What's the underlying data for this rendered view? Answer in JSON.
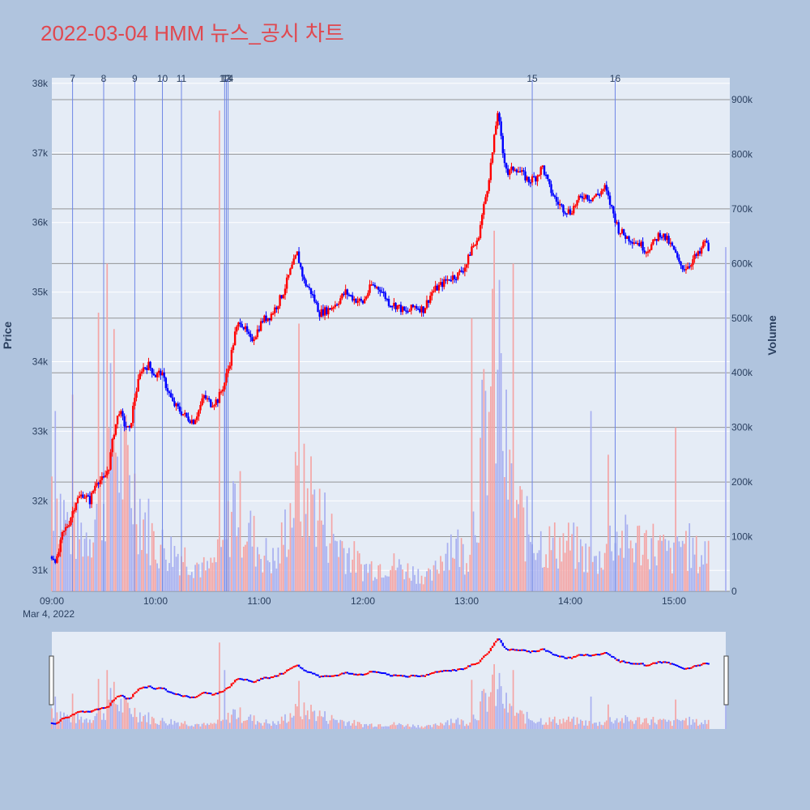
{
  "title": "2022-03-04 HMM 뉴스_공시 차트",
  "colors": {
    "title": "#e0484f",
    "up": "#ff0000",
    "down": "#0000ff",
    "vol_up": "#f4a5a5",
    "vol_down": "#a8b0f0",
    "plot_bg": "#e5ecf6",
    "page_bg": "#b0c4de",
    "grid": "#ffffff",
    "vol_grid": "#7f7f7f",
    "news_line": "#6f86e6"
  },
  "chart_data": {
    "type": "candlestick",
    "x_start": "09:00",
    "x_end": "15:30",
    "x_tick_labels": [
      "09:00",
      "10:00",
      "11:00",
      "12:00",
      "13:00",
      "14:00",
      "15:00"
    ],
    "x_date_label": "Mar 4, 2022",
    "price_axis": {
      "label": "Price",
      "range": [
        30700,
        38080
      ],
      "ticks": [
        31000,
        32000,
        33000,
        34000,
        35000,
        36000,
        37000,
        38000
      ],
      "tick_labels": [
        "31k",
        "32k",
        "33k",
        "34k",
        "35k",
        "36k",
        "37k",
        "38k"
      ]
    },
    "volume_axis": {
      "label": "Volume",
      "range": [
        0,
        940000
      ],
      "ticks": [
        0,
        100000,
        200000,
        300000,
        400000,
        500000,
        600000,
        700000,
        800000,
        900000
      ],
      "tick_labels": [
        "0",
        "100k",
        "200k",
        "300k",
        "400k",
        "500k",
        "600k",
        "700k",
        "800k",
        "900k"
      ]
    },
    "price_path": [
      [
        "09:00",
        31200
      ],
      [
        "09:03",
        31150
      ],
      [
        "09:06",
        31500
      ],
      [
        "09:10",
        31700
      ],
      [
        "09:14",
        32000
      ],
      [
        "09:18",
        32100
      ],
      [
        "09:22",
        32000
      ],
      [
        "09:26",
        32300
      ],
      [
        "09:30",
        32300
      ],
      [
        "09:33",
        32500
      ],
      [
        "09:36",
        33000
      ],
      [
        "09:39",
        33300
      ],
      [
        "09:42",
        33100
      ],
      [
        "09:45",
        33000
      ],
      [
        "09:48",
        33500
      ],
      [
        "09:52",
        33900
      ],
      [
        "09:56",
        33950
      ],
      [
        "10:00",
        33800
      ],
      [
        "10:03",
        33850
      ],
      [
        "10:07",
        33600
      ],
      [
        "10:10",
        33400
      ],
      [
        "10:14",
        33300
      ],
      [
        "10:18",
        33200
      ],
      [
        "10:22",
        33150
      ],
      [
        "10:25",
        33300
      ],
      [
        "10:28",
        33500
      ],
      [
        "10:32",
        33400
      ],
      [
        "10:36",
        33450
      ],
      [
        "10:40",
        33700
      ],
      [
        "10:43",
        34000
      ],
      [
        "10:46",
        34400
      ],
      [
        "10:49",
        34600
      ],
      [
        "10:52",
        34450
      ],
      [
        "10:55",
        34300
      ],
      [
        "10:58",
        34400
      ],
      [
        "11:02",
        34600
      ],
      [
        "11:06",
        34650
      ],
      [
        "11:10",
        34800
      ],
      [
        "11:14",
        35000
      ],
      [
        "11:18",
        35300
      ],
      [
        "11:22",
        35550
      ],
      [
        "11:26",
        35150
      ],
      [
        "11:30",
        35000
      ],
      [
        "11:35",
        34700
      ],
      [
        "11:40",
        34750
      ],
      [
        "11:45",
        34850
      ],
      [
        "11:50",
        35000
      ],
      [
        "11:55",
        34900
      ],
      [
        "12:00",
        34850
      ],
      [
        "12:05",
        35100
      ],
      [
        "12:10",
        35050
      ],
      [
        "12:15",
        34850
      ],
      [
        "12:20",
        34800
      ],
      [
        "12:25",
        34700
      ],
      [
        "12:30",
        34800
      ],
      [
        "12:35",
        34750
      ],
      [
        "12:40",
        35000
      ],
      [
        "12:45",
        35100
      ],
      [
        "12:50",
        35200
      ],
      [
        "12:55",
        35250
      ],
      [
        "13:00",
        35400
      ],
      [
        "13:03",
        35650
      ],
      [
        "13:06",
        35700
      ],
      [
        "13:09",
        36100
      ],
      [
        "13:12",
        36500
      ],
      [
        "13:15",
        37000
      ],
      [
        "13:18",
        37600
      ],
      [
        "13:21",
        37000
      ],
      [
        "13:24",
        36700
      ],
      [
        "13:28",
        36800
      ],
      [
        "13:32",
        36700
      ],
      [
        "13:36",
        36600
      ],
      [
        "13:40",
        36650
      ],
      [
        "13:44",
        36800
      ],
      [
        "13:48",
        36500
      ],
      [
        "13:52",
        36300
      ],
      [
        "13:56",
        36200
      ],
      [
        "14:00",
        36150
      ],
      [
        "14:04",
        36300
      ],
      [
        "14:08",
        36400
      ],
      [
        "14:12",
        36350
      ],
      [
        "14:16",
        36400
      ],
      [
        "14:20",
        36500
      ],
      [
        "14:24",
        36200
      ],
      [
        "14:28",
        35900
      ],
      [
        "14:32",
        35800
      ],
      [
        "14:36",
        35750
      ],
      [
        "14:40",
        35700
      ],
      [
        "14:44",
        35600
      ],
      [
        "14:48",
        35700
      ],
      [
        "14:52",
        35850
      ],
      [
        "14:56",
        35750
      ],
      [
        "15:00",
        35600
      ],
      [
        "15:03",
        35400
      ],
      [
        "15:06",
        35350
      ],
      [
        "15:09",
        35400
      ],
      [
        "15:12",
        35500
      ],
      [
        "15:15",
        35550
      ],
      [
        "15:18",
        35750
      ],
      [
        "15:20",
        35600
      ]
    ],
    "volume_profile": [
      [
        "09:00",
        250000
      ],
      [
        "09:10",
        130000
      ],
      [
        "09:20",
        120000
      ],
      [
        "09:30",
        200000
      ],
      [
        "09:35",
        350000
      ],
      [
        "09:40",
        280000
      ],
      [
        "09:50",
        190000
      ],
      [
        "10:00",
        100000
      ],
      [
        "10:15",
        80000
      ],
      [
        "10:30",
        45000
      ],
      [
        "10:40",
        90000
      ],
      [
        "10:45",
        200000
      ],
      [
        "10:50",
        160000
      ],
      [
        "11:00",
        90000
      ],
      [
        "11:10",
        60000
      ],
      [
        "11:20",
        200000
      ],
      [
        "11:30",
        210000
      ],
      [
        "11:40",
        130000
      ],
      [
        "12:00",
        50000
      ],
      [
        "12:15",
        60000
      ],
      [
        "12:30",
        40000
      ],
      [
        "12:40",
        30000
      ],
      [
        "12:50",
        110000
      ],
      [
        "13:00",
        80000
      ],
      [
        "13:05",
        170000
      ],
      [
        "13:10",
        330000
      ],
      [
        "13:15",
        420000
      ],
      [
        "13:20",
        380000
      ],
      [
        "13:25",
        220000
      ],
      [
        "13:35",
        130000
      ],
      [
        "13:45",
        100000
      ],
      [
        "14:00",
        100000
      ],
      [
        "14:15",
        60000
      ],
      [
        "14:25",
        120000
      ],
      [
        "14:35",
        100000
      ],
      [
        "14:45",
        110000
      ],
      [
        "15:00",
        70000
      ],
      [
        "15:05",
        110000
      ],
      [
        "15:15",
        70000
      ],
      [
        "15:20",
        90000
      ]
    ],
    "volume_spikes": [
      [
        "09:02",
        330000,
        "down"
      ],
      [
        "09:12",
        360000,
        "up"
      ],
      [
        "09:27",
        510000,
        "up"
      ],
      [
        "09:32",
        600000,
        "up"
      ],
      [
        "09:36",
        480000,
        "up"
      ],
      [
        "10:37",
        880000,
        "up"
      ],
      [
        "10:40",
        600000,
        "down"
      ],
      [
        "11:23",
        490000,
        "up"
      ],
      [
        "13:03",
        500000,
        "up"
      ],
      [
        "13:16",
        660000,
        "up"
      ],
      [
        "13:19",
        570000,
        "down"
      ],
      [
        "13:27",
        600000,
        "up"
      ],
      [
        "14:12",
        330000,
        "down"
      ],
      [
        "14:22",
        250000,
        "up"
      ],
      [
        "15:01",
        300000,
        "up"
      ],
      [
        "15:30",
        630000,
        "down"
      ]
    ],
    "news_markers": [
      {
        "label": "7",
        "time": "09:12"
      },
      {
        "label": "8",
        "time": "09:30"
      },
      {
        "label": "9",
        "time": "09:48"
      },
      {
        "label": "10",
        "time": "10:04"
      },
      {
        "label": "11",
        "time": "10:15"
      },
      {
        "label": "12",
        "time": "10:40"
      },
      {
        "label": "13",
        "time": "10:41"
      },
      {
        "label": "14",
        "time": "10:42"
      },
      {
        "label": "15",
        "time": "13:38"
      },
      {
        "label": "16",
        "time": "14:26"
      }
    ]
  }
}
